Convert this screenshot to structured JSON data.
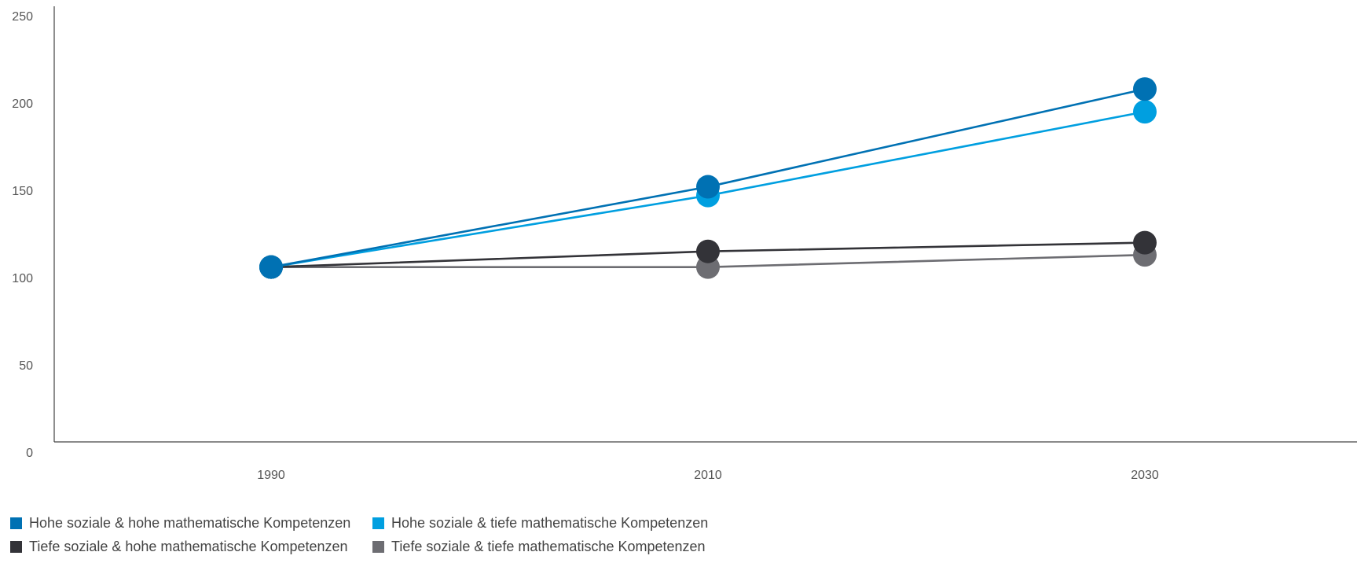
{
  "chart_data": {
    "type": "line",
    "title": "",
    "xlabel": "",
    "ylabel": "",
    "categories": [
      "1990",
      "2010",
      "2030"
    ],
    "ylim": [
      0,
      250
    ],
    "yticks": [
      "0",
      "50",
      "100",
      "150",
      "200",
      "250"
    ],
    "grid": false,
    "legend_position": "bottom-left",
    "series": [
      {
        "name": "Hohe soziale & hohe mathematische Kompetenzen",
        "color": "#0071B3",
        "values": [
          106,
          152,
          208
        ]
      },
      {
        "name": "Hohe soziale & tiefe mathematische Kompetenzen",
        "color": "#009FE0",
        "values": [
          106,
          147,
          195
        ]
      },
      {
        "name": "Tiefe soziale & hohe mathematische Kompetenzen",
        "color": "#333338",
        "values": [
          106,
          115,
          120
        ]
      },
      {
        "name": "Tiefe soziale & tiefe mathematische Kompetenzen",
        "color": "#6D6D72",
        "values": [
          106,
          106,
          113
        ]
      }
    ]
  }
}
